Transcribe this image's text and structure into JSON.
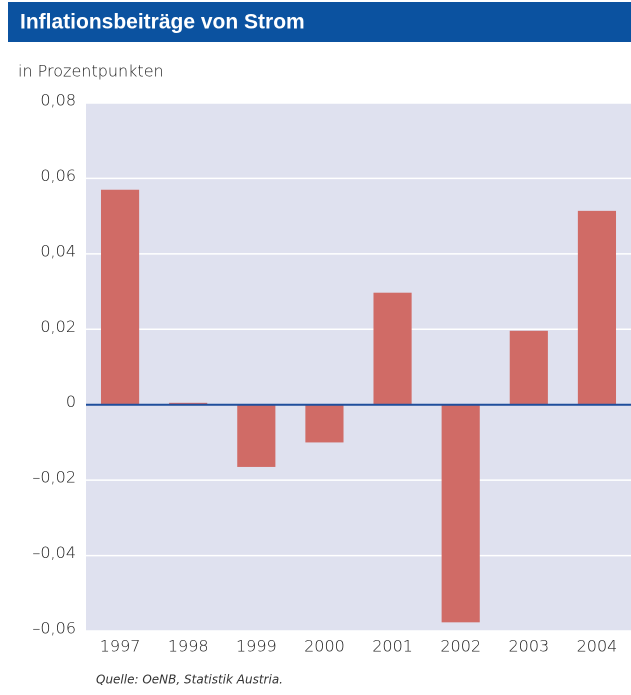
{
  "chart_data": {
    "type": "bar",
    "title": "Inflationsbeiträge von Strom",
    "subtitle": "in Prozentpunkten",
    "source": "Quelle: OeNB, Statistik Austria.",
    "categories": [
      "1997",
      "1998",
      "1999",
      "2000",
      "2001",
      "2002",
      "2003",
      "2004"
    ],
    "values": [
      0.057,
      0.0005,
      -0.0165,
      -0.01,
      0.0297,
      -0.0577,
      0.0196,
      0.0514
    ],
    "color": "#d06b66",
    "ylim": [
      -0.06,
      0.08
    ],
    "yticks": [
      {
        "value": -0.06,
        "label": "–0,06"
      },
      {
        "value": -0.04,
        "label": "–0,04"
      },
      {
        "value": -0.02,
        "label": "–0,02"
      },
      {
        "value": 0,
        "label": "0"
      },
      {
        "value": 0.02,
        "label": "0,02"
      },
      {
        "value": 0.04,
        "label": "0,04"
      },
      {
        "value": 0.06,
        "label": "0,06"
      },
      {
        "value": 0.08,
        "label": "0,08"
      }
    ],
    "grid": true
  }
}
